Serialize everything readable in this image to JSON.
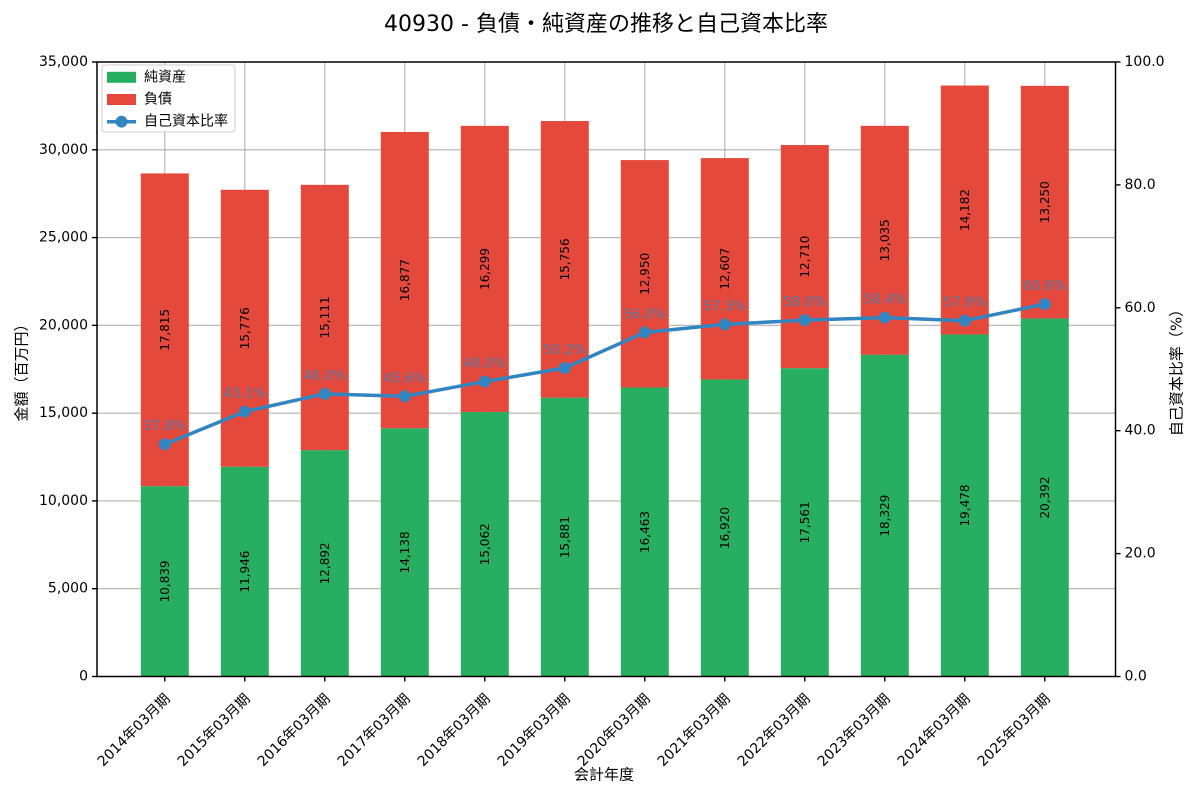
{
  "chart_data": {
    "type": "bar",
    "stacked": true,
    "title": "40930 - 負債・純資産の推移と自己資本比率",
    "xlabel": "会計年度",
    "ylabel_left": "金額（百万円）",
    "ylabel_right": "自己資本比率（%）",
    "categories": [
      "2014年03月期",
      "2015年03月期",
      "2016年03月期",
      "2017年03月期",
      "2018年03月期",
      "2019年03月期",
      "2020年03月期",
      "2021年03月期",
      "2022年03月期",
      "2023年03月期",
      "2024年03月期",
      "2025年03月期"
    ],
    "series": [
      {
        "name": "純資産",
        "type": "bar",
        "axis": "left",
        "color": "#27ae60",
        "values": [
          10839,
          11946,
          12892,
          14138,
          15062,
          15881,
          16463,
          16920,
          17561,
          18329,
          19478,
          20392
        ]
      },
      {
        "name": "負債",
        "type": "bar",
        "axis": "left",
        "color": "#e4493b",
        "values": [
          17815,
          15776,
          15111,
          16877,
          16299,
          15756,
          12950,
          12607,
          12710,
          13035,
          14182,
          13250
        ]
      },
      {
        "name": "自己資本比率",
        "type": "line",
        "axis": "right",
        "color": "#3185c1",
        "values": [
          37.8,
          43.1,
          46.0,
          45.6,
          48.0,
          50.2,
          56.0,
          57.3,
          58.0,
          58.4,
          57.9,
          60.6
        ]
      }
    ],
    "bar_value_labels": [
      [
        "10,839",
        "11,946",
        "12,892",
        "14,138",
        "15,062",
        "15,881",
        "16,463",
        "16,920",
        "17,561",
        "18,329",
        "19,478",
        "20,392"
      ],
      [
        "17,815",
        "15,776",
        "15,111",
        "16,877",
        "16,299",
        "15,756",
        "12,950",
        "12,607",
        "12,710",
        "13,035",
        "14,182",
        "13,250"
      ]
    ],
    "line_value_labels": [
      "37.8%",
      "43.1%",
      "46.0%",
      "45.6%",
      "48.0%",
      "50.2%",
      "56.0%",
      "57.3%",
      "58.0%",
      "58.4%",
      "57.9%",
      "60.6%"
    ],
    "ylim_left": [
      0,
      35000
    ],
    "ylim_right": [
      0,
      100
    ],
    "yticks_left": [
      "0",
      "5,000",
      "10,000",
      "15,000",
      "20,000",
      "25,000",
      "30,000",
      "35,000"
    ],
    "yticks_right": [
      "0.0",
      "20.0",
      "40.0",
      "60.0",
      "80.0",
      "100.0"
    ],
    "grid": true,
    "legend_position": "upper left",
    "legend_entries": [
      "純資産",
      "負債",
      "自己資本比率"
    ],
    "colors": {
      "net_assets": "#27ae60",
      "liabilities": "#e4493b",
      "ratio_line": "#3185c1",
      "ratio_label": "#3185c1",
      "grid": "#b0b0b0",
      "spine": "#000000",
      "text": "#000000",
      "background": "#ffffff"
    }
  }
}
